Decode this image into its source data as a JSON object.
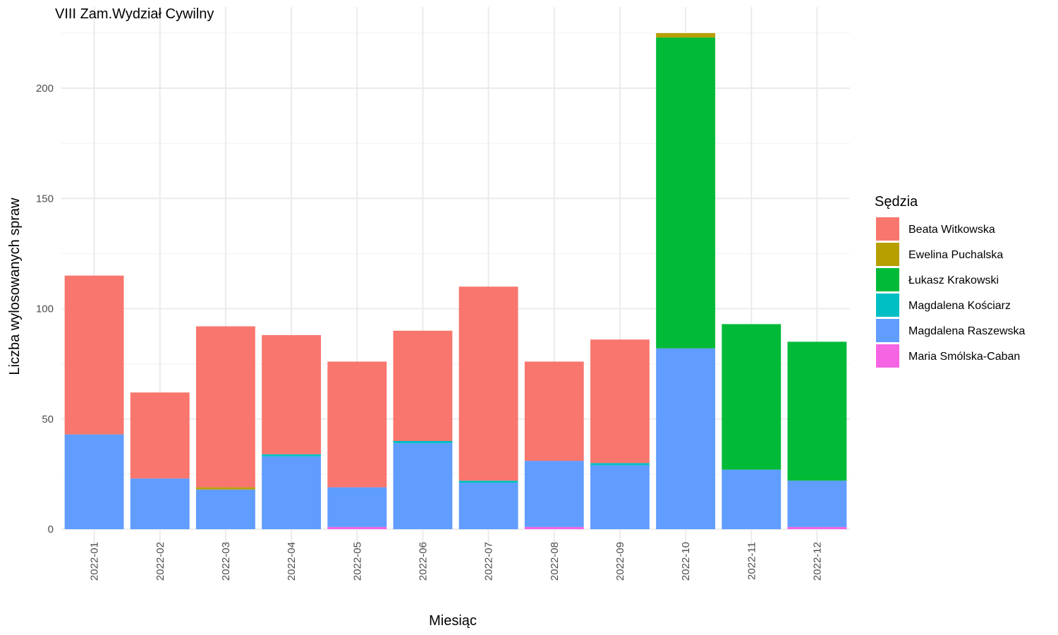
{
  "chart_data": {
    "type": "bar",
    "stacked": true,
    "title": "VIII Zam.Wydział Cywilny",
    "xlabel": "Miesiąc",
    "ylabel": "Liczba wylosowanych spraw",
    "ylim": [
      0,
      225
    ],
    "yticks": [
      0,
      50,
      100,
      150,
      200
    ],
    "grid": true,
    "legend_position": "right",
    "legend_title": "Sędzia",
    "categories": [
      "2022-01",
      "2022-02",
      "2022-03",
      "2022-04",
      "2022-05",
      "2022-06",
      "2022-07",
      "2022-08",
      "2022-09",
      "2022-10",
      "2022-11",
      "2022-12"
    ],
    "stack_order_bottom_to_top": [
      "Maria Smólska-Caban",
      "Magdalena Raszewska",
      "Magdalena Kościarz",
      "Łukasz Krakowski",
      "Ewelina Puchalska",
      "Beata Witkowska"
    ],
    "series": [
      {
        "name": "Beata Witkowska",
        "color": "#F8766D",
        "values": [
          72,
          39,
          73,
          54,
          57,
          50,
          88,
          45,
          56,
          0,
          0,
          0
        ]
      },
      {
        "name": "Ewelina Puchalska",
        "color": "#B79F00",
        "values": [
          0,
          0,
          1,
          0,
          0,
          0,
          0,
          0,
          0,
          2,
          0,
          0
        ]
      },
      {
        "name": "Łukasz Krakowski",
        "color": "#00BA38",
        "values": [
          0,
          0,
          0,
          0,
          0,
          0,
          0,
          0,
          0,
          141,
          66,
          63
        ]
      },
      {
        "name": "Magdalena Kościarz",
        "color": "#00BFC4",
        "values": [
          0,
          0,
          0,
          1,
          0,
          1,
          1,
          0,
          1,
          0,
          0,
          0
        ]
      },
      {
        "name": "Magdalena Raszewska",
        "color": "#619CFF",
        "values": [
          43,
          23,
          18,
          33,
          18,
          39,
          21,
          30,
          29,
          82,
          27,
          21
        ]
      },
      {
        "name": "Maria Smólska-Caban",
        "color": "#F564E3",
        "values": [
          0,
          0,
          0,
          0,
          1,
          0,
          0,
          1,
          0,
          0,
          0,
          1
        ]
      }
    ]
  }
}
